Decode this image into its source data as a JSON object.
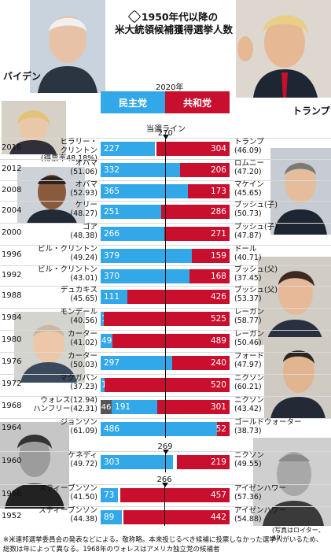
{
  "title": [
    "1950年代以降の",
    "米大統領候補獲得選挙人数"
  ],
  "header": {
    "year": "2020年",
    "dem_label": "民主党",
    "rep_label": "共和党",
    "left_name": "バイデン",
    "right_name": "トランプ",
    "threshold_label": "当選ライン"
  },
  "colors": {
    "dem": "#33a8e8",
    "rep": "#c8102e",
    "other": "#555555"
  },
  "chart_data": {
    "type": "bar",
    "subtype": "diverging-stacked-horizontal",
    "xlim": [
      0,
      538
    ],
    "thresholds": [
      {
        "years": "1964-2016",
        "value": 270,
        "label": "270"
      },
      {
        "years": "1960",
        "value": 269,
        "label": "269"
      },
      {
        "years": "1952-1956",
        "value": 266,
        "label": "266"
      }
    ],
    "rows": [
      {
        "year": "2016",
        "dem_name": "ヒラリー・\nクリントン",
        "dem_pct": "(得票率48.18%)",
        "dem_votes": 227,
        "rep_name": "トランプ",
        "rep_pct": "(46.09)",
        "rep_votes": 304
      },
      {
        "year": "2012",
        "dem_name": "オバマ",
        "dem_pct": "(51.06)",
        "dem_votes": 332,
        "rep_name": "ロムニー",
        "rep_pct": "(47.20)",
        "rep_votes": 206
      },
      {
        "year": "2008",
        "dem_name": "オバマ",
        "dem_pct": "(52.93)",
        "dem_votes": 365,
        "rep_name": "マケイン",
        "rep_pct": "(45.65)",
        "rep_votes": 173
      },
      {
        "year": "2004",
        "dem_name": "ケリー",
        "dem_pct": "(48.27)",
        "dem_votes": 251,
        "rep_name": "ブッシュ(子)",
        "rep_pct": "(50.73)",
        "rep_votes": 286
      },
      {
        "year": "2000",
        "dem_name": "ゴア",
        "dem_pct": "(48.38)",
        "dem_votes": 266,
        "rep_name": "ブッシュ(子)",
        "rep_pct": "(47.87)",
        "rep_votes": 271
      },
      {
        "year": "1996",
        "dem_name": "ビル・クリントン",
        "dem_pct": "(49.24)",
        "dem_votes": 379,
        "rep_name": "ドール",
        "rep_pct": "(40.71)",
        "rep_votes": 159
      },
      {
        "year": "1992",
        "dem_name": "ビル・クリントン",
        "dem_pct": "(43.01)",
        "dem_votes": 370,
        "rep_name": "ブッシュ(父)",
        "rep_pct": "(37.45)",
        "rep_votes": 168
      },
      {
        "year": "1988",
        "dem_name": "デュカキス",
        "dem_pct": "(45.65)",
        "dem_votes": 111,
        "rep_name": "ブッシュ(父)",
        "rep_pct": "(53.37)",
        "rep_votes": 426
      },
      {
        "year": "1984",
        "dem_name": "モンデール",
        "dem_pct": "(40.56)",
        "dem_votes": 13,
        "rep_name": "レーガン",
        "rep_pct": "(58.77)",
        "rep_votes": 525
      },
      {
        "year": "1980",
        "dem_name": "カーター",
        "dem_pct": "(41.02)",
        "dem_votes": 49,
        "rep_name": "レーガン",
        "rep_pct": "(50.46)",
        "rep_votes": 489
      },
      {
        "year": "1976",
        "dem_name": "カーター",
        "dem_pct": "(50.03)",
        "dem_votes": 297,
        "rep_name": "フォード",
        "rep_pct": "(47.97)",
        "rep_votes": 240
      },
      {
        "year": "1972",
        "dem_name": "マクガバン",
        "dem_pct": "(37.23)",
        "dem_votes": 17,
        "rep_name": "ニクソン",
        "rep_pct": "(60.21)",
        "rep_votes": 520
      },
      {
        "year": "1968",
        "dem_name": "ウォレス(12.94)\nハンフリー(42.31)",
        "dem_pct": "",
        "other_votes": 46,
        "dem_votes": 191,
        "rep_name": "ニクソン",
        "rep_pct": "(43.42)",
        "rep_votes": 301
      },
      {
        "year": "1964",
        "dem_name": "ジョンソン",
        "dem_pct": "(61.09)",
        "dem_votes": 486,
        "rep_name": "ゴールドウォーター",
        "rep_pct": "(38.73)",
        "rep_votes": 52
      },
      {
        "year": "1960",
        "dem_name": "ケネディ",
        "dem_pct": "(49.72)",
        "dem_votes": 303,
        "rep_name": "ニクソン",
        "rep_pct": "(49.55)",
        "rep_votes": 219
      },
      {
        "year": "1956",
        "dem_name": "スティーブンソン",
        "dem_pct": "(41.50)",
        "dem_votes": 73,
        "rep_name": "アイゼンハワー",
        "rep_pct": "(57.36)",
        "rep_votes": 457
      },
      {
        "year": "1952",
        "dem_name": "スティーブンソン",
        "dem_pct": "(44.38)",
        "dem_votes": 89,
        "rep_name": "アイゼンハワー",
        "rep_pct": "(54.88)",
        "rep_votes": 442
      }
    ]
  },
  "credit": "(写真はロイター、AP)",
  "footnote": "※米連邦選挙委員会の発表などによる。敬称略。本来投じるべき候補に投票しなかった選挙人がいるため、総数は年によって異なる。1968年のウォレスはアメリカ独立党の候補者"
}
